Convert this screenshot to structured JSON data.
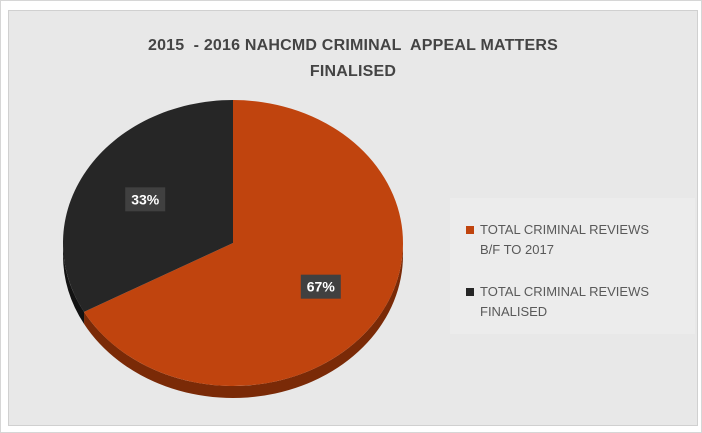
{
  "chart_data": {
    "type": "pie",
    "title_lines": [
      "2015  - 2016 NAHCMD CRIMINAL  APPEAL MATTERS",
      "FINALISED"
    ],
    "slices": [
      {
        "label": "TOTAL CRIMINAL REVIEWS\nB/F TO 2017",
        "value": 67,
        "display": "67%",
        "color": "#c0440e",
        "side_color": "#7a2a07"
      },
      {
        "label": "TOTAL CRIMINAL REVIEWS\nFINALISED",
        "value": 33,
        "display": "33%",
        "color": "#262626",
        "side_color": "#121212"
      }
    ],
    "legend_position": "right"
  }
}
